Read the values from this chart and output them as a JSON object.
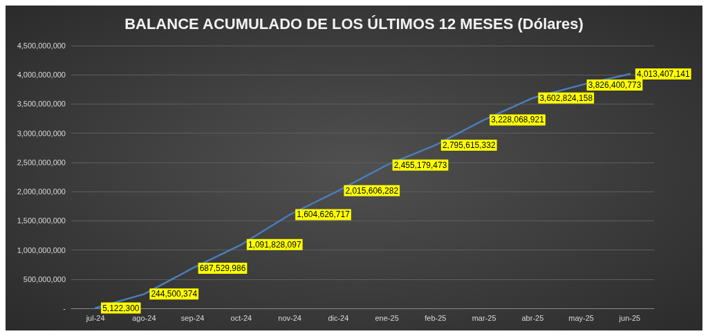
{
  "chart_data": {
    "type": "line",
    "title": "BALANCE ACUMULADO DE LOS ÚLTIMOS 12 MESES (Dólares)",
    "categories": [
      "jul-24",
      "ago-24",
      "sep-24",
      "oct-24",
      "nov-24",
      "dic-24",
      "ene-25",
      "feb-25",
      "mar-25",
      "abr-25",
      "may-25",
      "jun-25"
    ],
    "series": [
      {
        "color": "#4a7ebb",
        "values": [
          5122300,
          244500374,
          687529986,
          1091828097,
          1604626717,
          2015606282,
          2455179473,
          2795615332,
          3228068921,
          3602824158,
          3826400773,
          4013407141
        ],
        "value_labels": [
          "5,122,300",
          "244,500,374",
          "687,529,986",
          "1,091,828,097",
          "1,604,626,717",
          "2,015,606,282",
          "2,455,179,473",
          "2,795,615,332",
          "3,228,068,921",
          "3,602,824,158",
          "3,826,400,773",
          "4,013,407,141"
        ]
      }
    ],
    "ylim": [
      0,
      4500000000
    ],
    "yticks": [
      {
        "value": 0,
        "label": "-"
      },
      {
        "value": 500000000,
        "label": "500,000,000"
      },
      {
        "value": 1000000000,
        "label": "1,000,000,000"
      },
      {
        "value": 1500000000,
        "label": "1,500,000,000"
      },
      {
        "value": 2000000000,
        "label": "2,000,000,000"
      },
      {
        "value": 2500000000,
        "label": "2,500,000,000"
      },
      {
        "value": 3000000000,
        "label": "3,000,000,000"
      },
      {
        "value": 3500000000,
        "label": "3,500,000,000"
      },
      {
        "value": 4000000000,
        "label": "4,000,000,000"
      },
      {
        "value": 4500000000,
        "label": "4,500,000,000"
      }
    ],
    "grid": "y",
    "marker": "none",
    "line_style": "solid"
  }
}
